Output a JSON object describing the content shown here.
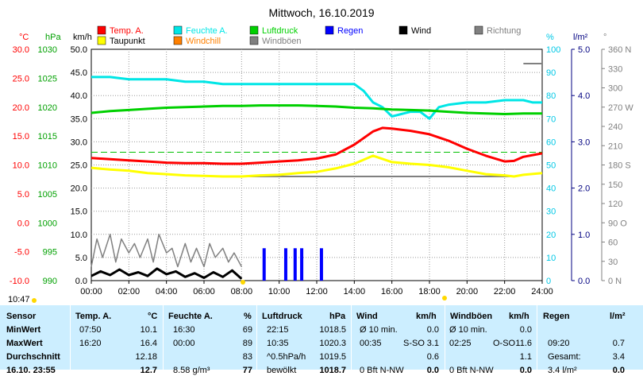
{
  "chart_data": {
    "type": "line",
    "title": "Mittwoch, 16.10.2019",
    "x_ticks": [
      "00:00",
      "02:00",
      "04:00",
      "06:00",
      "08:00",
      "10:00",
      "12:00",
      "14:00",
      "16:00",
      "18:00",
      "20:00",
      "22:00",
      "24:00"
    ],
    "axes": {
      "temp": {
        "unit": "°C",
        "color": "#ff0000",
        "ticks": [
          "30.0",
          "25.0",
          "20.0",
          "15.0",
          "10.0",
          "5.0",
          "0.0",
          "-5.0",
          "-10.0"
        ],
        "ylim": [
          -10,
          30
        ]
      },
      "pressure": {
        "unit": "hPa",
        "color": "#00a000",
        "ticks": [
          "1030",
          "1025",
          "1020",
          "1015",
          "1010",
          "1005",
          "1000",
          "995",
          "990"
        ],
        "ylim": [
          990,
          1030
        ]
      },
      "wind": {
        "unit": "km/h",
        "color": "#000000",
        "ticks": [
          "50.0",
          "45.0",
          "40.0",
          "35.0",
          "30.0",
          "25.0",
          "20.0",
          "15.0",
          "10.0",
          "5.0",
          "0.0"
        ],
        "ylim": [
          0,
          50
        ]
      },
      "humidity": {
        "unit": "%",
        "color": "#00c8e6",
        "ticks": [
          "100",
          "90",
          "80",
          "70",
          "60",
          "50",
          "40",
          "30",
          "20",
          "10",
          "0"
        ],
        "ylim": [
          0,
          100
        ]
      },
      "rain": {
        "unit": "l/m²",
        "color": "#000080",
        "ticks": [
          "5.0",
          "4.0",
          "3.0",
          "2.0",
          "1.0",
          "0.0"
        ],
        "ylim": [
          0,
          5
        ]
      },
      "direction": {
        "unit": "°",
        "color": "#808080",
        "ticks": [
          "360 N",
          "330",
          "300",
          "270 W",
          "240",
          "210",
          "180 S",
          "150",
          "120",
          "90 O",
          "60",
          "30",
          "0 N"
        ],
        "ylim": [
          0,
          360
        ]
      }
    },
    "legend": [
      {
        "label": "Temp. A.",
        "color": "#ff0000"
      },
      {
        "label": "Feuchte A.",
        "color": "#00e6e6"
      },
      {
        "label": "Luftdruck",
        "color": "#00d000"
      },
      {
        "label": "Regen",
        "color": "#0000ff"
      },
      {
        "label": "Wind",
        "color": "#000000"
      },
      {
        "label": "Richtung",
        "color": "#808080"
      },
      {
        "label": "Taupunkt",
        "color": "#ffff00"
      },
      {
        "label": "Windchill",
        "color": "#ff8000"
      },
      {
        "label": "Windböen",
        "color": "#808080"
      }
    ],
    "series": [
      {
        "name": "Temp. A.",
        "axis": "temp",
        "color": "#ff0000",
        "x": [
          0,
          1,
          2,
          3,
          4,
          5,
          6,
          7,
          8,
          9,
          10,
          11,
          12,
          13,
          14,
          15,
          15.5,
          16,
          17,
          18,
          19,
          20,
          21,
          22,
          22.5,
          23,
          24
        ],
        "y": [
          11.2,
          11.0,
          10.8,
          10.6,
          10.4,
          10.3,
          10.3,
          10.2,
          10.2,
          10.4,
          10.6,
          10.8,
          11.1,
          11.8,
          13.5,
          15.8,
          16.4,
          16.3,
          15.9,
          15.3,
          14.2,
          12.8,
          11.6,
          10.6,
          10.7,
          11.4,
          12.0
        ]
      },
      {
        "name": "Taupunkt",
        "axis": "temp",
        "color": "#ffff00",
        "x": [
          0,
          1,
          2,
          3,
          4,
          5,
          6,
          7,
          8,
          9,
          10,
          11,
          12,
          13,
          14,
          15,
          16,
          17,
          18,
          19,
          20,
          21,
          22,
          22.5,
          23,
          24
        ],
        "y": [
          9.5,
          9.2,
          9.0,
          8.6,
          8.4,
          8.2,
          8.1,
          8.0,
          8.0,
          8.2,
          8.3,
          8.6,
          8.8,
          9.4,
          10.2,
          11.6,
          10.5,
          10.2,
          10.0,
          9.6,
          9.0,
          8.4,
          8.2,
          8.0,
          8.3,
          8.6
        ]
      },
      {
        "name": "Feuchte A.",
        "axis": "humidity",
        "color": "#00e6e6",
        "x": [
          0,
          1,
          2,
          3,
          4,
          5,
          6,
          7,
          8,
          9,
          10,
          11,
          12,
          13,
          14,
          14.5,
          15,
          15.5,
          16,
          16.5,
          17,
          17.5,
          18,
          18.5,
          19,
          20,
          21,
          22,
          23,
          23.5,
          24
        ],
        "y": [
          88,
          88,
          87,
          87,
          87,
          86,
          86,
          85,
          85,
          85,
          85,
          85,
          85,
          85,
          85,
          82,
          77,
          75,
          71,
          72,
          73,
          73,
          70,
          75,
          76,
          77,
          77,
          78,
          78,
          77,
          77
        ]
      },
      {
        "name": "Luftdruck",
        "axis": "pressure",
        "color": "#00d000",
        "x": [
          0,
          1,
          2,
          3,
          4,
          5,
          6,
          7,
          8,
          9,
          10,
          11,
          12,
          13,
          14,
          15,
          16,
          17,
          18,
          19,
          20,
          21,
          22,
          23,
          24
        ],
        "y": [
          1019.0,
          1019.3,
          1019.5,
          1019.7,
          1019.9,
          1020.0,
          1020.1,
          1020.2,
          1020.2,
          1020.3,
          1020.3,
          1020.3,
          1020.2,
          1020.1,
          1019.9,
          1019.8,
          1019.6,
          1019.5,
          1019.4,
          1019.2,
          1019.0,
          1018.9,
          1018.8,
          1018.9,
          1018.9
        ]
      },
      {
        "name": "Wind",
        "axis": "wind",
        "color": "#000000",
        "x": [
          0,
          0.5,
          1,
          1.5,
          2,
          2.5,
          3,
          3.5,
          4,
          4.5,
          5,
          5.5,
          6,
          6.5,
          7,
          7.5,
          8
        ],
        "y": [
          1.0,
          2.0,
          1.2,
          2.4,
          1.2,
          1.8,
          1.0,
          2.6,
          1.4,
          2.0,
          0.8,
          1.6,
          0.6,
          1.8,
          0.8,
          2.2,
          0.4
        ]
      },
      {
        "name": "Windböen",
        "axis": "wind",
        "color": "#808080",
        "x": [
          0,
          0.3,
          0.6,
          1,
          1.3,
          1.6,
          2,
          2.3,
          2.6,
          3,
          3.3,
          3.6,
          4,
          4.3,
          4.6,
          5,
          5.3,
          5.6,
          6,
          6.3,
          6.6,
          7,
          7.3,
          7.6,
          8
        ],
        "y": [
          3,
          9,
          5,
          10,
          4,
          9,
          6,
          8,
          5,
          9,
          4,
          10,
          6,
          7,
          3,
          8,
          4,
          7,
          3,
          8,
          5,
          7,
          4,
          6,
          3
        ]
      },
      {
        "name": "Regen",
        "axis": "rain",
        "type": "bar",
        "color": "#0000ff",
        "x": [
          9.2,
          10.35,
          10.85,
          11.2,
          12.25
        ],
        "y": [
          0.7,
          0.7,
          0.7,
          0.7,
          0.7
        ]
      }
    ],
    "annotations": [
      "10:47"
    ]
  },
  "table": {
    "headers": [
      "Sensor",
      "Temp. A.",
      "°C",
      "Feuchte A.",
      "%",
      "Luftdruck",
      "hPa",
      "Wind",
      "km/h",
      "Windböen",
      "km/h",
      "Regen",
      "l/m²"
    ],
    "rows": [
      {
        "label": "MinWert",
        "t_time": "07:50",
        "t_val": "10.1",
        "h_time": "16:30",
        "h_val": "69",
        "p_time": "22:15",
        "p_val": "1018.5",
        "w_desc": "Ø 10 min.",
        "w_val": "0.0",
        "g_desc": "Ø 10 min.",
        "g_val": "0.0",
        "r_time": "",
        "r_val": ""
      },
      {
        "label": "MaxWert",
        "t_time": "16:20",
        "t_val": "16.4",
        "h_time": "00:00",
        "h_val": "89",
        "p_time": "10:35",
        "p_val": "1020.3",
        "w_desc": "00:35",
        "w_dir": "S-SO",
        "w_val": "3.1",
        "g_desc": "02:25",
        "g_dir": "O-SO",
        "g_val": "11.6",
        "r_time": "09:20",
        "r_val": "0.7"
      },
      {
        "label": "Durchschnitt",
        "t_time": "",
        "t_val": "12.18",
        "h_time": "",
        "h_val": "83",
        "p_time": "^0.5hPa/h",
        "p_val": "1019.5",
        "w_desc": "",
        "w_val": "0.6",
        "g_desc": "",
        "g_val": "1.1",
        "r_time": "Gesamt:",
        "r_val": "3.4"
      },
      {
        "label": "16.10. 23:55",
        "t_time": "",
        "t_val": "12.7",
        "h_time": "8.58 g/m³",
        "h_val": "77",
        "p_time": "bewölkt",
        "p_val": "1018.7",
        "w_desc": "0 Bft N-NW",
        "w_val": "0.0",
        "g_desc": "0 Bft N-NW",
        "g_val": "0.0",
        "r_time": "3.4 l/m²",
        "r_val": "0.0"
      }
    ]
  }
}
